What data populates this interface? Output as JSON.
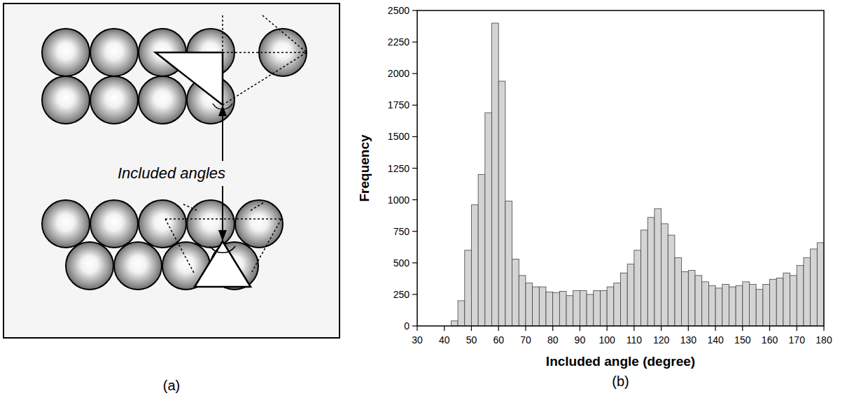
{
  "chart_data": {
    "type": "histogram",
    "x_label": "Included angle (degree)",
    "y_label": "Frequency",
    "panel_label": "(b)",
    "bins": [
      42.5,
      45,
      47.5,
      50,
      52.5,
      55,
      57.5,
      60,
      62.5,
      65,
      67.5,
      70,
      72.5,
      75,
      77.5,
      80,
      82.5,
      85,
      87.5,
      90,
      92.5,
      95,
      97.5,
      100,
      102.5,
      105,
      107.5,
      110,
      112.5,
      115,
      117.5,
      120,
      122.5,
      125,
      127.5,
      130,
      132.5,
      135,
      137.5,
      140,
      142.5,
      145,
      147.5,
      150,
      152.5,
      155,
      157.5,
      160,
      162.5,
      165,
      167.5,
      170,
      172.5,
      175,
      177.5,
      180
    ],
    "values": [
      40,
      200,
      600,
      960,
      1200,
      1690,
      2400,
      1940,
      990,
      530,
      400,
      340,
      310,
      310,
      270,
      265,
      275,
      240,
      280,
      280,
      250,
      280,
      280,
      310,
      340,
      420,
      490,
      600,
      760,
      860,
      930,
      810,
      720,
      540,
      430,
      440,
      400,
      350,
      320,
      300,
      330,
      310,
      320,
      350,
      330,
      290,
      330,
      370,
      380,
      420,
      400,
      480,
      540,
      610,
      660
    ],
    "color": "#d4d4d4",
    "xlim": [
      30,
      180
    ],
    "xticks": [
      30,
      40,
      50,
      60,
      70,
      80,
      90,
      100,
      110,
      120,
      130,
      140,
      150,
      160,
      170,
      180
    ],
    "ylim": [
      0,
      2500
    ],
    "yticks": [
      0,
      250,
      500,
      750,
      1000,
      1250,
      1500,
      1750,
      2000,
      2250,
      2500
    ],
    "grid": false
  },
  "diagram": {
    "label": "Included angles",
    "panel_label": "(a)"
  }
}
